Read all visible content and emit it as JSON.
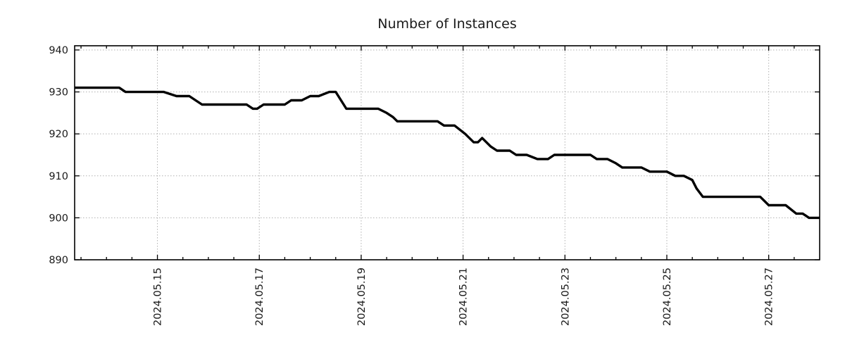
{
  "title": "Number of Instances",
  "chart_data": {
    "type": "line",
    "title": "Number of Instances",
    "grid": "dotted-at-major-ticks-both-axes",
    "legend": "none",
    "line_color": "#000000",
    "line_width": 3.4,
    "frame_color": "#000000",
    "grid_color": "#b0b0b0",
    "text_color": "#1a1a1a",
    "background_color": "#ffffff",
    "y_axis": {
      "min": 890,
      "max": 941,
      "ticks": [
        890,
        900,
        910,
        920,
        930,
        940
      ],
      "tick_labels": [
        "890",
        "900",
        "910",
        "920",
        "930",
        "940"
      ]
    },
    "x_axis": {
      "start": "2024-05-13 09:00",
      "end": "2024-05-28 00:00",
      "minor_tick_interval_hours": 12,
      "major_ticks": [
        {
          "t": "2024-05-15 00:00",
          "label": "2024.05.15"
        },
        {
          "t": "2024-05-17 00:00",
          "label": "2024.05.17"
        },
        {
          "t": "2024-05-19 00:00",
          "label": "2024.05.19"
        },
        {
          "t": "2024-05-21 00:00",
          "label": "2024.05.21"
        },
        {
          "t": "2024-05-23 00:00",
          "label": "2024.05.23"
        },
        {
          "t": "2024-05-25 00:00",
          "label": "2024.05.25"
        },
        {
          "t": "2024-05-27 00:00",
          "label": "2024.05.27"
        }
      ]
    },
    "series": [
      {
        "name": "instances",
        "color": "#000000",
        "points": [
          [
            "2024-05-13 09:00",
            931
          ],
          [
            "2024-05-14 06:00",
            931
          ],
          [
            "2024-05-14 09:00",
            930
          ],
          [
            "2024-05-15 03:00",
            930
          ],
          [
            "2024-05-15 09:00",
            929
          ],
          [
            "2024-05-15 15:00",
            929
          ],
          [
            "2024-05-15 18:00",
            928
          ],
          [
            "2024-05-15 21:00",
            927
          ],
          [
            "2024-05-16 18:00",
            927
          ],
          [
            "2024-05-16 21:00",
            926
          ],
          [
            "2024-05-16 23:00",
            926
          ],
          [
            "2024-05-17 02:00",
            927
          ],
          [
            "2024-05-17 12:00",
            927
          ],
          [
            "2024-05-17 15:00",
            928
          ],
          [
            "2024-05-17 20:00",
            928
          ],
          [
            "2024-05-18 00:00",
            929
          ],
          [
            "2024-05-18 04:00",
            929
          ],
          [
            "2024-05-18 09:00",
            930
          ],
          [
            "2024-05-18 12:00",
            930
          ],
          [
            "2024-05-18 17:00",
            926
          ],
          [
            "2024-05-19 08:00",
            926
          ],
          [
            "2024-05-19 12:00",
            925
          ],
          [
            "2024-05-19 15:00",
            924
          ],
          [
            "2024-05-19 17:00",
            923
          ],
          [
            "2024-05-20 12:00",
            923
          ],
          [
            "2024-05-20 15:00",
            922
          ],
          [
            "2024-05-20 20:00",
            922
          ],
          [
            "2024-05-21 01:00",
            920
          ],
          [
            "2024-05-21 05:00",
            918
          ],
          [
            "2024-05-21 07:00",
            918
          ],
          [
            "2024-05-21 09:00",
            919
          ],
          [
            "2024-05-21 13:00",
            917
          ],
          [
            "2024-05-21 16:00",
            916
          ],
          [
            "2024-05-21 22:00",
            916
          ],
          [
            "2024-05-22 01:00",
            915
          ],
          [
            "2024-05-22 06:00",
            915
          ],
          [
            "2024-05-22 11:00",
            914
          ],
          [
            "2024-05-22 16:00",
            914
          ],
          [
            "2024-05-22 19:00",
            915
          ],
          [
            "2024-05-23 12:00",
            915
          ],
          [
            "2024-05-23 15:00",
            914
          ],
          [
            "2024-05-23 20:00",
            914
          ],
          [
            "2024-05-24 00:00",
            913
          ],
          [
            "2024-05-24 03:00",
            912
          ],
          [
            "2024-05-24 12:00",
            912
          ],
          [
            "2024-05-24 16:00",
            911
          ],
          [
            "2024-05-25 00:00",
            911
          ],
          [
            "2024-05-25 04:00",
            910
          ],
          [
            "2024-05-25 08:00",
            910
          ],
          [
            "2024-05-25 12:00",
            909
          ],
          [
            "2024-05-25 14:00",
            907
          ],
          [
            "2024-05-25 17:00",
            905
          ],
          [
            "2024-05-26 20:00",
            905
          ],
          [
            "2024-05-27 00:00",
            903
          ],
          [
            "2024-05-27 08:00",
            903
          ],
          [
            "2024-05-27 13:00",
            901
          ],
          [
            "2024-05-27 16:00",
            901
          ],
          [
            "2024-05-27 19:00",
            900
          ],
          [
            "2024-05-28 00:00",
            900
          ]
        ]
      }
    ]
  }
}
